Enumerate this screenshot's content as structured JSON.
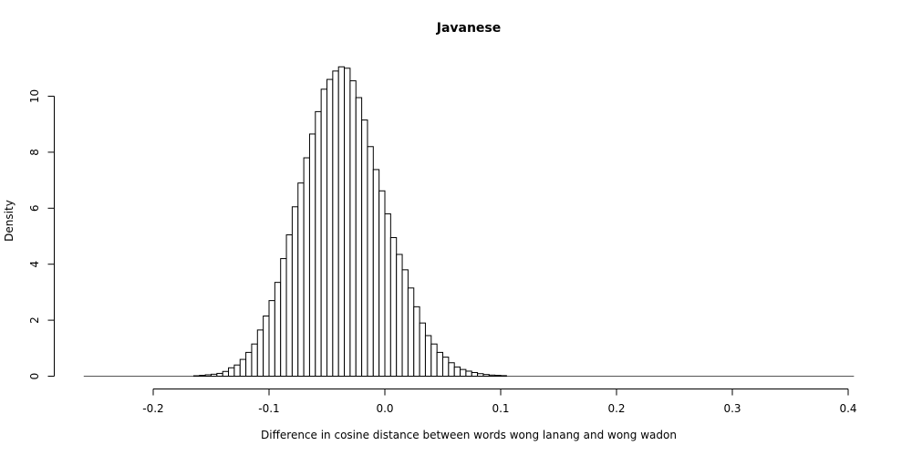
{
  "chart_data": {
    "type": "histogram",
    "title": "Javanese",
    "xlabel": "Difference in cosine distance between words wong lanang and wong wadon",
    "ylabel": "Density",
    "xlim": [
      -0.26,
      0.405
    ],
    "ylim": [
      0,
      11.1
    ],
    "x_ticks": [
      -0.2,
      -0.1,
      0.0,
      0.1,
      0.2,
      0.3,
      0.4
    ],
    "x_tick_labels": [
      "-0.2",
      "-0.1",
      "0.0",
      "0.1",
      "0.2",
      "0.3",
      "0.4"
    ],
    "y_ticks": [
      0,
      2,
      4,
      6,
      8,
      10
    ],
    "y_tick_labels": [
      "0",
      "2",
      "4",
      "6",
      "8",
      "10"
    ],
    "bin_width": 0.005,
    "bin_start": -0.26,
    "density": [
      0,
      0,
      0,
      0,
      0,
      0,
      0,
      0,
      0,
      0,
      0,
      0,
      0,
      0,
      0,
      0,
      0,
      0.005,
      0.01,
      0.015,
      0.03,
      0.05,
      0.07,
      0.1,
      0.17,
      0.3,
      0.4,
      0.6,
      0.85,
      1.15,
      1.65,
      2.15,
      2.7,
      3.35,
      4.2,
      5.05,
      6.05,
      6.9,
      7.8,
      8.65,
      9.45,
      10.25,
      10.6,
      10.9,
      11.05,
      11.0,
      10.55,
      9.95,
      9.15,
      8.2,
      7.38,
      6.62,
      5.8,
      4.95,
      4.35,
      3.8,
      3.15,
      2.48,
      1.9,
      1.45,
      1.15,
      0.85,
      0.68,
      0.48,
      0.33,
      0.24,
      0.18,
      0.13,
      0.09,
      0.06,
      0.04,
      0.03,
      0.02,
      0.012,
      0.008,
      0.005,
      0.003,
      0.002,
      0.001,
      0.001,
      0,
      0,
      0,
      0,
      0,
      0,
      0,
      0,
      0,
      0,
      0,
      0,
      0,
      0,
      0,
      0,
      0,
      0,
      0,
      0,
      0,
      0,
      0,
      0,
      0,
      0,
      0,
      0,
      0,
      0,
      0,
      0,
      0,
      0,
      0,
      0,
      0,
      0,
      0,
      0,
      0,
      0,
      0,
      0,
      0,
      0,
      0,
      0,
      0,
      0,
      0,
      0
    ]
  }
}
